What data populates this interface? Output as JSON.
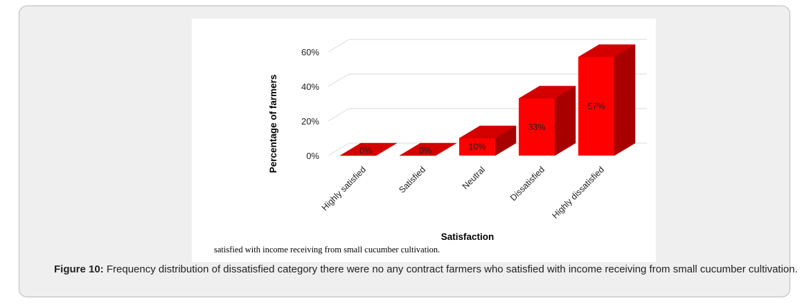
{
  "figure": {
    "inset_caption": "satisfied with income receiving from small cucumber cultivation.",
    "caption_label": "Figure 10:",
    "caption_text": " Frequency distribution of dissatisfied category there were no any contract farmers who satisfied with income receiving from small cucumber cultivation."
  },
  "chart_data": {
    "type": "bar",
    "style": "3d-column",
    "title": "",
    "xlabel": "Satisfaction",
    "ylabel": "Percentage of farmers",
    "categories": [
      "Highly satisfied",
      "Satisfied",
      "Neutral",
      "Dissatisfied",
      "Highly dissatisfied"
    ],
    "values": [
      0,
      0,
      10,
      33,
      57
    ],
    "data_labels": [
      "0%",
      "0%",
      "10%",
      "33%",
      "57%"
    ],
    "yticks": [
      0,
      20,
      40,
      60
    ],
    "ytick_labels": [
      "0%",
      "20%",
      "40%",
      "60%"
    ],
    "ylim": [
      0,
      60
    ],
    "grid": true,
    "legend": "none",
    "colors": {
      "front": "#ff0000",
      "top": "#d40000",
      "side": "#a80000",
      "grid": "#d9d9d9"
    }
  }
}
